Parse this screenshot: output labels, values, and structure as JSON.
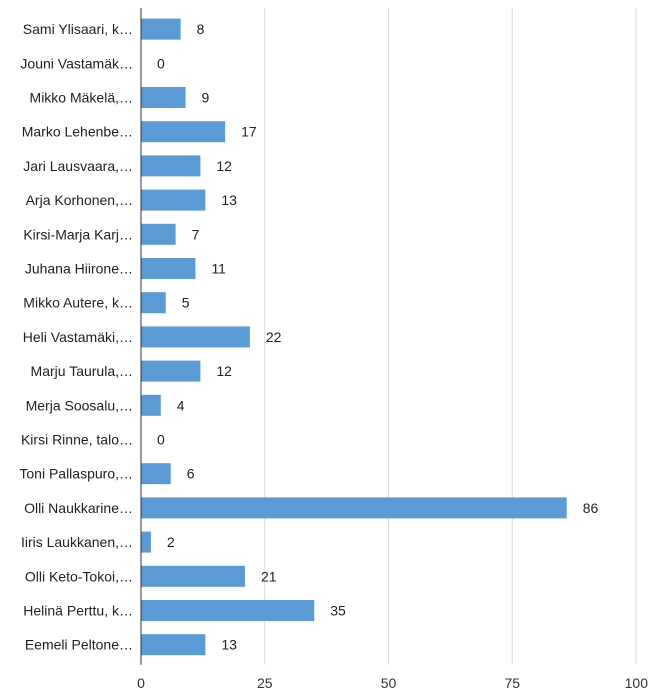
{
  "chart_data": {
    "type": "bar",
    "orientation": "horizontal",
    "title": "",
    "xlabel": "",
    "ylabel": "",
    "xlim": [
      0,
      100
    ],
    "x_ticks": [
      0,
      25,
      50,
      75,
      100
    ],
    "grid": true,
    "legend": "none",
    "bar_color": "#5b9bd5",
    "categories": [
      "Sami Ylisaari, k…",
      "Jouni Vastamäk…",
      "Mikko Mäkelä,…",
      "Marko Lehenbe…",
      "Jari Lausvaara,…",
      "Arja Korhonen,…",
      "Kirsi-Marja Karj…",
      "Juhana Hiirone…",
      "Mikko Autere, k…",
      "Heli Vastamäki,…",
      "Marju Taurula,…",
      "Merja Soosalu,…",
      "Kirsi Rinne, talo…",
      "Toni Pallaspuro,…",
      "Olli Naukkarine…",
      "Iiris Laukkanen,…",
      "Olli Keto-Tokoi,…",
      "Helinä Perttu, k…",
      "Eemeli Peltone…"
    ],
    "values": [
      8,
      0,
      9,
      17,
      12,
      13,
      7,
      11,
      5,
      22,
      12,
      4,
      0,
      6,
      86,
      2,
      21,
      35,
      13
    ]
  }
}
